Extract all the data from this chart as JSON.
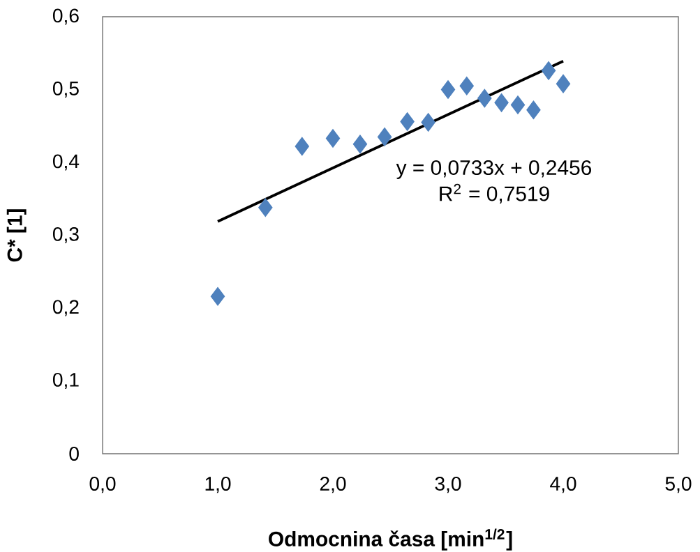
{
  "chart_data": {
    "type": "scatter",
    "xlabel": "Odmocnina časa [min$^{1/2}$]",
    "ylabel": "C* [1]",
    "series": [
      {
        "color": "#4f81bd",
        "marker": "diamond",
        "x": [
          1.0,
          1.414,
          1.732,
          2.0,
          2.236,
          2.449,
          2.646,
          2.828,
          3.0,
          3.162,
          3.317,
          3.464,
          3.606,
          3.742,
          3.873,
          4.0
        ],
        "values": [
          0.216,
          0.338,
          0.422,
          0.433,
          0.425,
          0.435,
          0.456,
          0.455,
          0.5,
          0.505,
          0.488,
          0.482,
          0.479,
          0.472,
          0.526,
          0.508
        ]
      },
      {
        "type": "line",
        "color": "#000000",
        "marker": "none",
        "x": [
          1.0,
          4.0
        ],
        "values": [
          0.319,
          0.539
        ]
      }
    ],
    "grid": false,
    "xlim": [
      0,
      5
    ],
    "ylim": [
      0,
      0.6
    ],
    "xticks": [
      {
        "value": 0,
        "label": "0,0"
      },
      {
        "value": 1,
        "label": "1,0"
      },
      {
        "value": 2,
        "label": "2,0"
      },
      {
        "value": 3,
        "label": "3,0"
      },
      {
        "value": 4,
        "label": "4,0"
      },
      {
        "value": 5,
        "label": "5,0"
      }
    ],
    "yticks": [
      0,
      {
        "value": 0.1,
        "label": "0,1"
      },
      {
        "value": 0.2,
        "label": "0,2"
      },
      {
        "value": 0.3,
        "label": "0,3"
      },
      {
        "value": 0.4,
        "label": "0,4"
      },
      {
        "value": 0.5,
        "label": "0,5"
      },
      {
        "value": 0.6,
        "label": "0,6"
      }
    ],
    "annotations": [
      "y = 0,0733x + 0,2456",
      "R$^{2}$ = 0,7519"
    ]
  }
}
